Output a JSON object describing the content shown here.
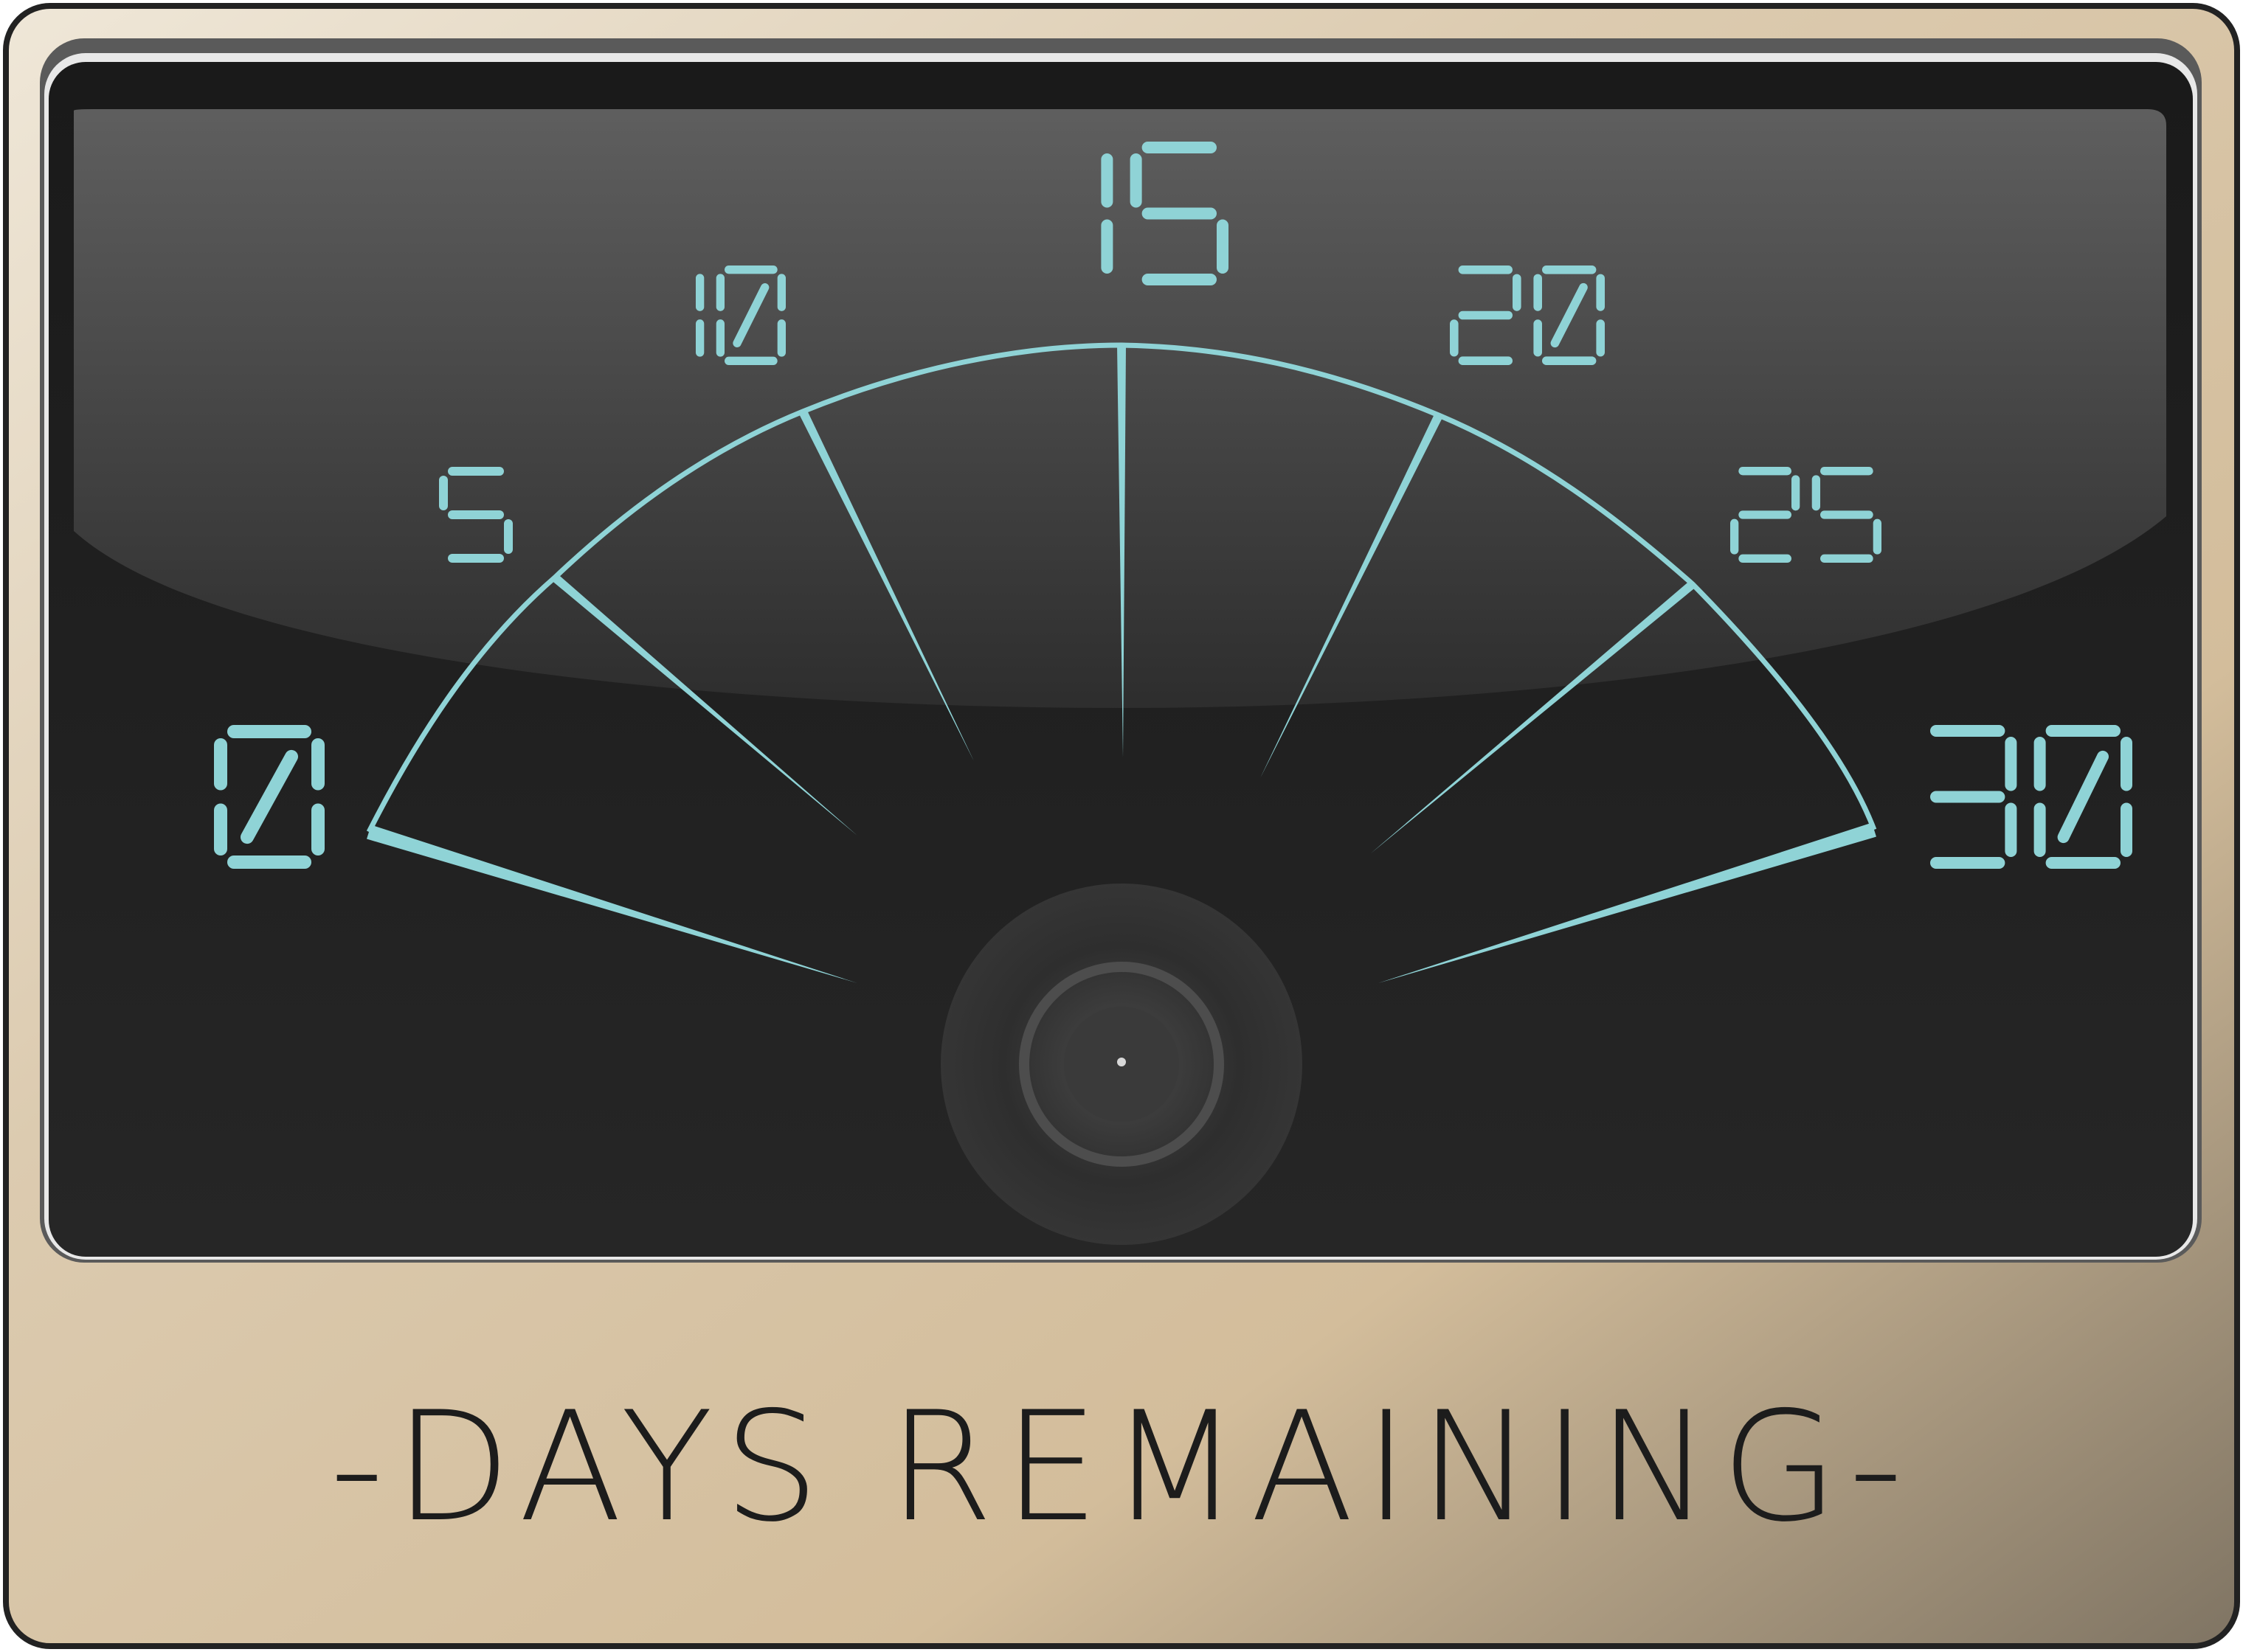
{
  "gauge": {
    "caption": "-DAYS REMAINING-",
    "scale_min": 0,
    "scale_max": 30,
    "scale_labels": [
      "0",
      "5",
      "10",
      "15",
      "20",
      "25",
      "30"
    ],
    "accent_color": "#8fd3d6",
    "face_color": "#222222",
    "frame_color": "#d8c6a6"
  }
}
